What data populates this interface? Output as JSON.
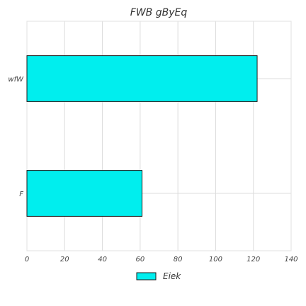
{
  "chart_data": {
    "type": "bar",
    "orientation": "horizontal",
    "title": "FWB gByEq",
    "xlabel": "",
    "ylabel": "",
    "categories": [
      "F",
      "wfW"
    ],
    "series": [
      {
        "name": "Eiek",
        "values": [
          61,
          122
        ],
        "color": "#00eeee"
      }
    ],
    "xlim": [
      0,
      140
    ],
    "xticks": [
      0,
      20,
      40,
      60,
      80,
      100,
      120,
      140
    ],
    "grid": true,
    "legend": "bottom-center"
  }
}
